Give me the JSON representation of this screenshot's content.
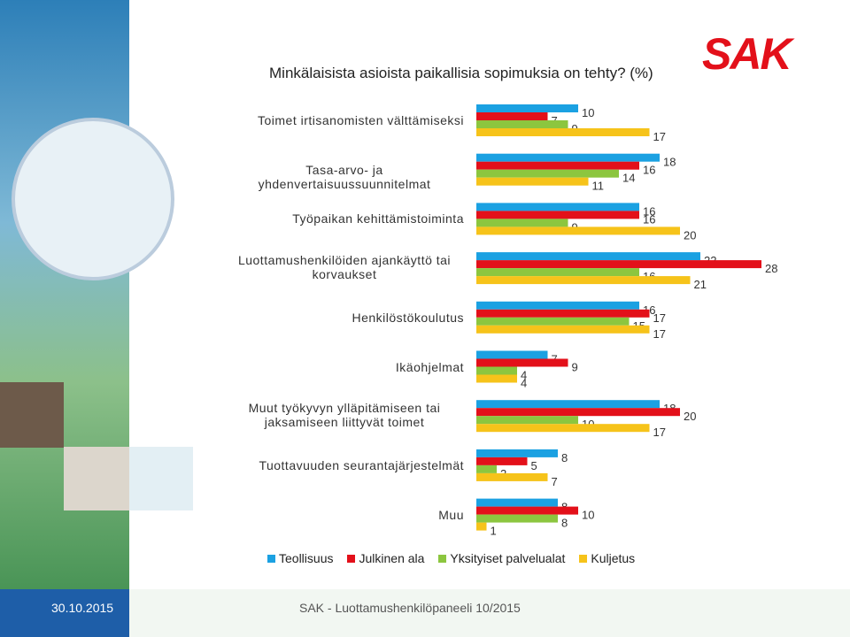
{
  "logo": "SAK",
  "footer": {
    "date": "30.10.2015",
    "source": "SAK - Luottamushenkilöpaneeli 10/2015"
  },
  "chart_data": {
    "type": "hbar",
    "title": "Minkälaisista asioista paikallisia sopimuksia on tehty? (%)",
    "categories": [
      "Toimet irtisanomisten välttämiseksi",
      "Tasa-arvo- ja yhdenvertaisuussuunnitelmat",
      "Työpaikan kehittämistoiminta",
      "Luottamushenkilöiden ajankäyttö tai korvaukset",
      "Henkilöstökoulutus",
      "Ikäohjelmat",
      "Muut työkyvyn ylläpitämiseen tai jaksamiseen liittyvät toimet",
      "Tuottavuuden seurantajärjestelmät",
      "Muu"
    ],
    "series": [
      {
        "name": "Teollisuus",
        "color": "#1ba1e2",
        "values": [
          10,
          18,
          16,
          22,
          16,
          7,
          18,
          8,
          8
        ]
      },
      {
        "name": "Julkinen ala",
        "color": "#e3101a",
        "values": [
          7,
          16,
          16,
          28,
          17,
          9,
          20,
          5,
          10
        ]
      },
      {
        "name": "Yksityiset palvelualat",
        "color": "#8cc63f",
        "values": [
          9,
          14,
          9,
          16,
          15,
          4,
          10,
          2,
          8
        ]
      },
      {
        "name": "Kuljetus",
        "color": "#f6c31a",
        "values": [
          17,
          11,
          20,
          21,
          17,
          4,
          17,
          7,
          1
        ]
      }
    ]
  }
}
